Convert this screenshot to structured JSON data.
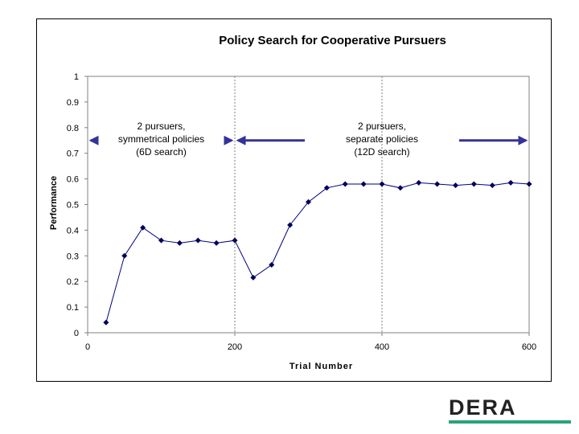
{
  "chart_data": {
    "type": "line",
    "title": "Policy Search for Cooperative Pursuers",
    "xlabel": "Trial Number",
    "ylabel": "Performance",
    "xlim": [
      0,
      600
    ],
    "ylim": [
      0,
      1
    ],
    "xticks": [
      "0",
      "200",
      "400",
      "600"
    ],
    "yticks": [
      "0",
      "0.1",
      "0.2",
      "0.3",
      "0.4",
      "0.5",
      "0.6",
      "0.7",
      "0.8",
      "0.9",
      "1"
    ],
    "grid": false,
    "legend": "none",
    "series": [
      {
        "x": [
          25,
          50,
          75,
          100,
          125,
          150,
          175,
          200,
          225,
          250,
          275,
          300,
          325,
          350,
          375,
          400,
          425,
          450,
          475,
          500,
          525,
          550,
          575,
          600
        ],
        "y": [
          0.04,
          0.3,
          0.41,
          0.36,
          0.35,
          0.36,
          0.35,
          0.36,
          0.215,
          0.265,
          0.42,
          0.51,
          0.565,
          0.58,
          0.58,
          0.58,
          0.565,
          0.585,
          0.58,
          0.575,
          0.58,
          0.575,
          0.585,
          0.58
        ]
      }
    ],
    "vlines": [
      200,
      400
    ],
    "annotations": [
      {
        "lines": [
          "2 pursuers,",
          "symmetrical policies",
          "(6D search)"
        ],
        "x_from": 0,
        "x_to": 200,
        "y": 0.75
      },
      {
        "lines": [
          "2 pursuers,",
          "separate policies",
          "(12D search)"
        ],
        "x_from": 200,
        "x_to": 600,
        "y": 0.75
      }
    ],
    "colors": {
      "line": "#00007f",
      "marker": "#00005a",
      "arrow": "#333399",
      "divider": "#7f7f7f"
    }
  },
  "logo": {
    "text": "DERA",
    "bar_color": "#2aa37a"
  }
}
